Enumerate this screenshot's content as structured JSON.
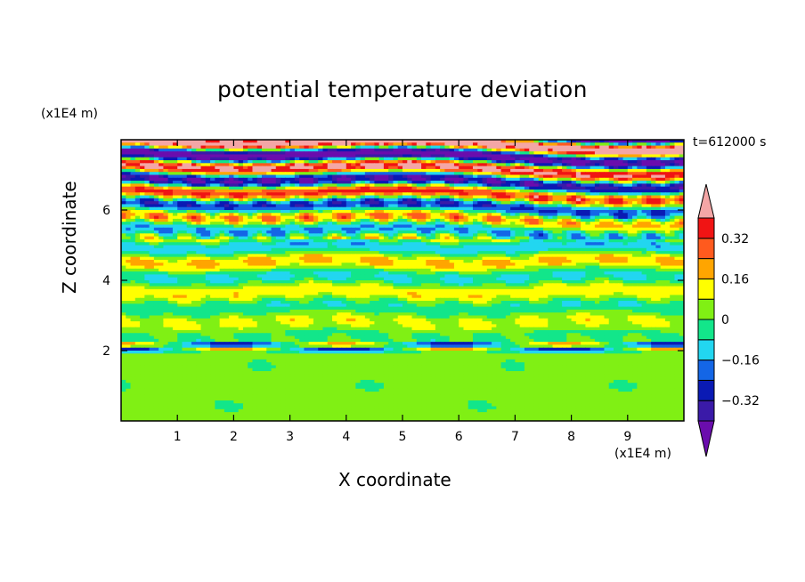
{
  "chart_data": {
    "type": "heatmap",
    "title": "potential temperature deviation",
    "xlabel": "X coordinate",
    "ylabel": "Z coordinate",
    "x_unit": "(x1E4 m)",
    "y_unit": "(x1E4 m)",
    "time_label": "t=612000 s",
    "xlim": [
      0,
      10
    ],
    "ylim": [
      0,
      8
    ],
    "x_ticks": [
      1,
      2,
      3,
      4,
      5,
      6,
      7,
      8,
      9
    ],
    "y_ticks": [
      2,
      4,
      6
    ],
    "colorbar": {
      "levels": [
        -0.4,
        -0.32,
        -0.24,
        -0.16,
        -0.08,
        0,
        0.08,
        0.16,
        0.24,
        0.32,
        0.4
      ],
      "tick_labels": [
        "0.32",
        "0.16",
        "0",
        "−0.16",
        "−0.32"
      ],
      "tick_values": [
        0.32,
        0.16,
        0,
        -0.16,
        -0.32
      ],
      "colors": [
        "#6a0dad",
        "#3a1aa8",
        "#0a1ab4",
        "#1466e6",
        "#22d6f0",
        "#12e68a",
        "#80f014",
        "#ffff00",
        "#ffa500",
        "#ff5a1e",
        "#f01414",
        "#f4a6a6"
      ],
      "extend": "both"
    }
  }
}
